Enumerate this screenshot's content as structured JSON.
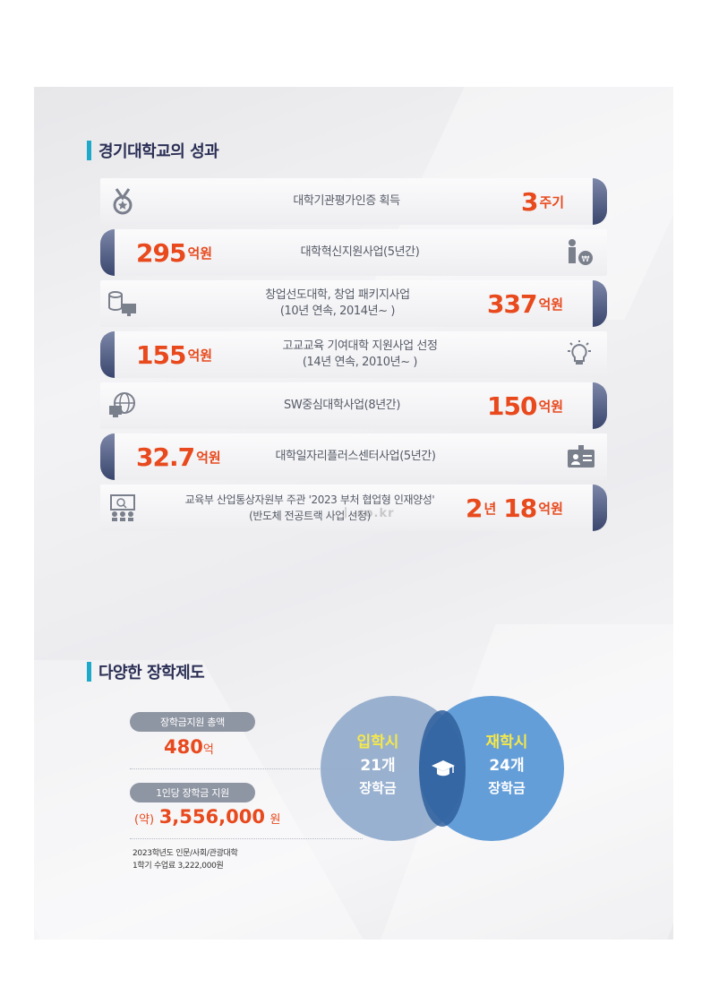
{
  "section1": {
    "title": "경기대학교의 성과"
  },
  "achievements": [
    {
      "desc1": "대학기관평가인증 획득",
      "desc2": "",
      "num": "3",
      "unit": "주기",
      "icon": "medal-icon"
    },
    {
      "desc1": "대학혁신지원사업(5년간)",
      "desc2": "",
      "num": "295",
      "unit": "억원",
      "icon": "presenter-money-icon"
    },
    {
      "desc1": "창업선도대학, 창업 패키지사업",
      "desc2": "(10년 연속, 2014년~ )",
      "num": "337",
      "unit": "억원",
      "icon": "coins-monitor-icon"
    },
    {
      "desc1": "고교교육 기여대학 지원사업 선정",
      "desc2": "(14년 연속, 2010년~ )",
      "num": "155",
      "unit": "억원",
      "icon": "lightbulb-icon"
    },
    {
      "desc1": "SW중심대학사업(8년간)",
      "desc2": "",
      "num": "150",
      "unit": "억원",
      "icon": "globe-computer-icon"
    },
    {
      "desc1": "대학일자리플러스센터사업(5년간)",
      "desc2": "",
      "num": "32.7",
      "unit": "억원",
      "icon": "id-card-icon"
    },
    {
      "desc1": "교육부 산업통상자원부 주관 '2023 부처 협업형 인재양성'",
      "desc2": "(반도체 전공트랙 사업 선정)",
      "num_a": "2",
      "unit_a": "년",
      "num": "18",
      "unit": "억원",
      "icon": "group-screen-icon"
    }
  ],
  "watermark": "ㅣ.co.kr",
  "section2": {
    "title": "다양한 장학제도"
  },
  "scholarship": {
    "total_label": "장학금지원 총액",
    "total_num": "480",
    "total_unit": "억",
    "per_label": "1인당 장학금 지원",
    "per_prefix": "(약)",
    "per_num": "3,556,000",
    "per_unit": "원",
    "note_line1": "2023학년도 인문/사회/관광대학",
    "note_line2": "1학기 수업료 3,222,000원"
  },
  "venn": {
    "left": {
      "title": "입학시",
      "count": "21개",
      "label": "장학금"
    },
    "right": {
      "title": "재학시",
      "count": "24개",
      "label": "장학금"
    },
    "center_icon": "graduation-cap-icon"
  },
  "colors": {
    "accent": "#e8491d",
    "title_bar": "#1fa9c9",
    "cap": "#4a557d",
    "circle_left": "#9db4cf",
    "circle_right": "#5d9bd6"
  }
}
